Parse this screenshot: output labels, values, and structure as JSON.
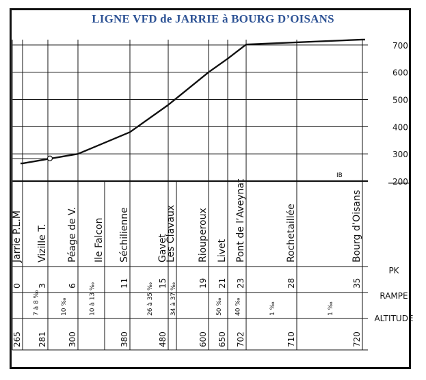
{
  "title": "LIGNE VFD de JARRIE à BOURG D’OISANS",
  "row_labels": {
    "pk": "PK",
    "rampe": "RAMPE",
    "altitude": "ALTITUDE"
  },
  "altitude_ticks": [
    "700",
    "600",
    "500",
    "400",
    "300",
    "200"
  ],
  "stations": [
    {
      "name": "Jarrie P.L.M",
      "pk": "0",
      "rampe": "7 à 8 ‰",
      "altitude": "265"
    },
    {
      "name": "Vizille T.",
      "pk": "3",
      "rampe": "10 ‰",
      "altitude": "281"
    },
    {
      "name": "Péage de V.",
      "pk": "6",
      "rampe": "10 à 13 ‰",
      "altitude": "300"
    },
    {
      "name": "Ile Falcon",
      "pk": "",
      "rampe": "",
      "altitude": ""
    },
    {
      "name": "Séchilienne",
      "pk": "11",
      "rampe": "26 à 35 ‰",
      "altitude": "380"
    },
    {
      "name": "Gavet",
      "pk": "15",
      "rampe": "34 à 37 ‰",
      "altitude": "480"
    },
    {
      "name": "Les Clavaux",
      "pk": "",
      "rampe": "",
      "altitude": ""
    },
    {
      "name": "Riouperoux",
      "pk": "19",
      "rampe": "50 ‰",
      "altitude": "600"
    },
    {
      "name": "Livet",
      "pk": "21",
      "rampe": "40 ‰",
      "altitude": "650"
    },
    {
      "name": "Pont de l’Aveynat",
      "pk": "23",
      "rampe": "1 ‰",
      "altitude": "702"
    },
    {
      "name": "Rochetaillée",
      "pk": "28",
      "rampe": "1 ‰",
      "altitude": "710"
    },
    {
      "name": "Bourg d’Oisans",
      "pk": "35",
      "rampe": "",
      "altitude": "720"
    }
  ],
  "mark_label": "IB",
  "profile": {
    "points": [
      {
        "pk": 0,
        "alt": 265
      },
      {
        "pk": 3,
        "alt": 281
      },
      {
        "pk": 6,
        "alt": 300
      },
      {
        "pk": 11,
        "alt": 380
      },
      {
        "pk": 15,
        "alt": 480
      },
      {
        "pk": 19,
        "alt": 600
      },
      {
        "pk": 21,
        "alt": 650
      },
      {
        "pk": 23,
        "alt": 702
      },
      {
        "pk": 28,
        "alt": 710
      },
      {
        "pk": 35,
        "alt": 720
      }
    ]
  }
}
